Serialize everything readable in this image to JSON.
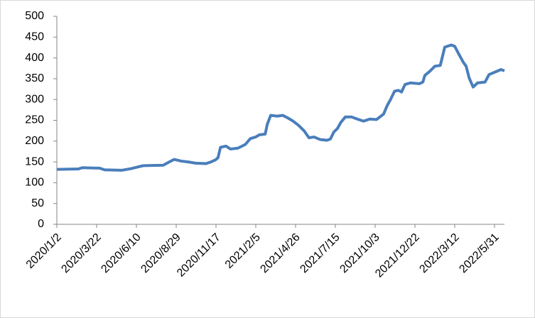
{
  "chart_data": {
    "type": "line",
    "x": [
      "2020/1/2",
      "2020/2/14",
      "2020/2/22",
      "2020/3/28",
      "2020/4/7",
      "2020/5/12",
      "2020/5/31",
      "2020/6/13",
      "2020/6/24",
      "2020/8/3",
      "2020/8/15",
      "2020/8/25",
      "2020/9/8",
      "2020/9/22",
      "2020/10/7",
      "2020/10/28",
      "2020/11/7",
      "2020/11/16",
      "2020/11/21",
      "2020/11/26",
      "2020/12/7",
      "2020/12/16",
      "2020/12/31",
      "2021/1/15",
      "2021/1/25",
      "2021/2/5",
      "2021/2/12",
      "2021/2/24",
      "2021/2/28",
      "2021/3/7",
      "2021/3/20",
      "2021/3/31",
      "2021/4/10",
      "2021/4/20",
      "2021/5/2",
      "2021/5/13",
      "2021/5/23",
      "2021/6/2",
      "2021/6/14",
      "2021/6/28",
      "2021/7/5",
      "2021/7/12",
      "2021/7/19",
      "2021/7/26",
      "2021/8/4",
      "2021/8/17",
      "2021/8/28",
      "2021/9/10",
      "2021/9/22",
      "2021/10/6",
      "2021/10/20",
      "2021/10/27",
      "2021/11/3",
      "2021/11/11",
      "2021/11/19",
      "2021/11/25",
      "2021/12/2",
      "2021/12/13",
      "2021/12/31",
      "2022/1/7",
      "2022/1/11",
      "2022/1/21",
      "2022/1/31",
      "2022/2/11",
      "2022/2/20",
      "2022/3/5",
      "2022/3/12",
      "2022/3/19",
      "2022/3/29",
      "2022/4/4",
      "2022/4/10",
      "2022/4/18",
      "2022/4/27",
      "2022/5/12",
      "2022/5/20",
      "2022/5/30",
      "2022/6/13",
      "2022/6/20"
    ],
    "series": [
      {
        "color": "#4a7ebb",
        "values": [
          132,
          133,
          136,
          135,
          131,
          130,
          134,
          138,
          141,
          142,
          150,
          156,
          152,
          150,
          147,
          146,
          150,
          155,
          160,
          185,
          188,
          181,
          183,
          192,
          206,
          210,
          215,
          217,
          240,
          262,
          260,
          262,
          256,
          249,
          238,
          225,
          208,
          210,
          204,
          202,
          205,
          222,
          230,
          245,
          258,
          258,
          253,
          248,
          253,
          252,
          265,
          285,
          300,
          320,
          322,
          318,
          336,
          340,
          338,
          342,
          358,
          368,
          380,
          382,
          426,
          431,
          428,
          412,
          390,
          380,
          352,
          330,
          340,
          342,
          360,
          365,
          372,
          369
        ]
      }
    ],
    "xlim": [
      "2020/1/2",
      "2022/6/20"
    ],
    "xticks": [
      "2020/1/2",
      "2020/3/22",
      "2020/6/10",
      "2020/8/29",
      "2020/11/17",
      "2021/2/5",
      "2021/4/26",
      "2021/7/15",
      "2021/10/3",
      "2021/12/22",
      "2022/3/12",
      "2022/5/31"
    ],
    "ylim": [
      0,
      500
    ],
    "yticks": [
      0,
      50,
      100,
      150,
      200,
      250,
      300,
      350,
      400,
      450,
      500
    ],
    "grid": false
  }
}
